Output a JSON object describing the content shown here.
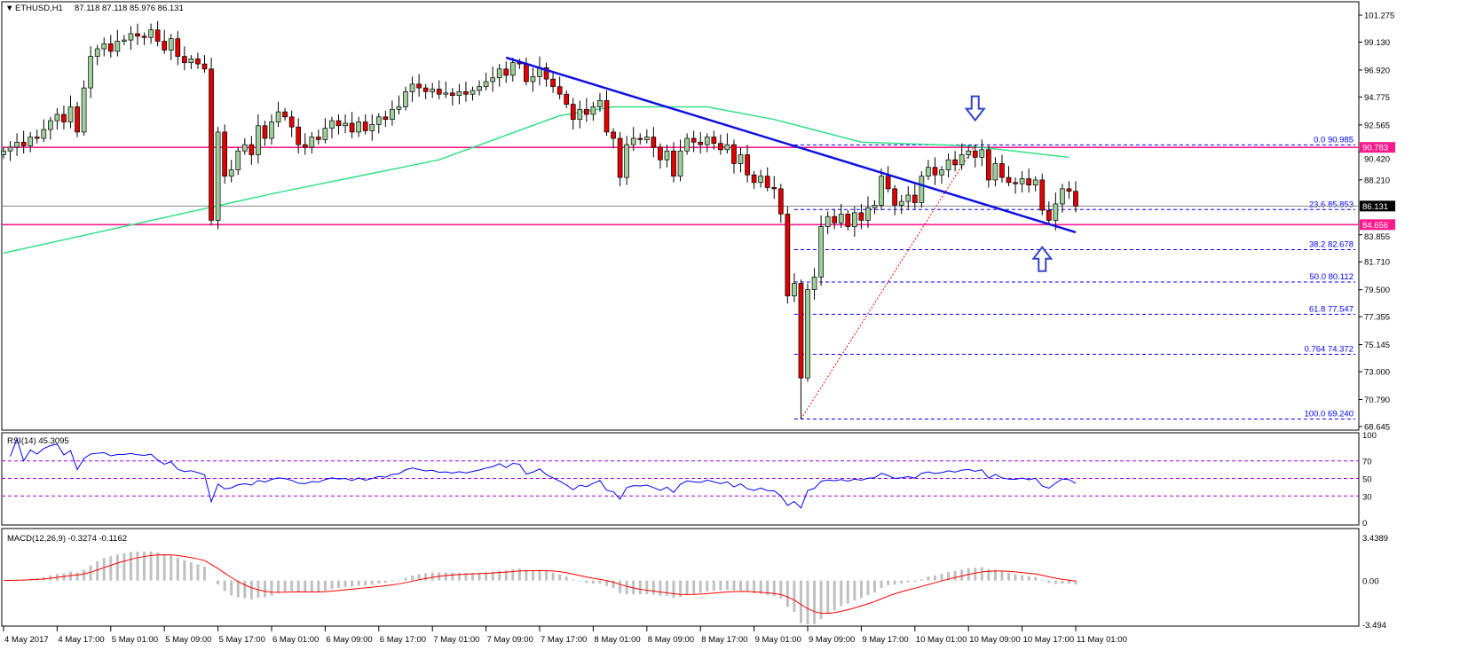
{
  "header": {
    "symbol": "ETHUSD,H1",
    "ohlc": "87.118 87.118 85.976 86.131"
  },
  "colors": {
    "bull": "#9fcf9a",
    "bear": "#e00000",
    "ma": "#33e08a",
    "trend": "#1010e0",
    "support": "#ff1a8c",
    "fib": "#0000ff",
    "rsi": "#0000ff",
    "levels": "#a000e0",
    "macd_signal": "#ff0000",
    "macd_hist": "#c0c0c0"
  },
  "chart_data": {
    "type": "candlestick",
    "title": "ETHUSD,H1",
    "timeframe_hours": 1,
    "ylim": [
      68.645,
      101.275
    ],
    "y_ticks": [
      "101.275",
      "99.130",
      "96.920",
      "94.775",
      "92.565",
      "90.420",
      "88.210",
      "83.855",
      "81.710",
      "79.500",
      "77.355",
      "75.145",
      "73.000",
      "70.790",
      "68.645"
    ],
    "x_ticks": [
      "4 May 2017",
      "4 May 17:00",
      "5 May 01:00",
      "5 May 09:00",
      "5 May 17:00",
      "6 May 01:00",
      "6 May 09:00",
      "6 May 17:00",
      "7 May 01:00",
      "7 May 09:00",
      "7 May 17:00",
      "8 May 01:00",
      "8 May 09:00",
      "8 May 17:00",
      "9 May 01:00",
      "9 May 09:00",
      "9 May 17:00",
      "10 May 01:00",
      "10 May 09:00",
      "10 May 17:00",
      "11 May 01:00"
    ],
    "x_tick_every_bars": 8,
    "closes": [
      90.5,
      90.8,
      91.2,
      90.9,
      91.6,
      91.5,
      92.2,
      92.9,
      93.4,
      92.8,
      94.0,
      92.0,
      95.5,
      98.0,
      98.6,
      99.0,
      98.4,
      99.2,
      99.3,
      99.8,
      99.6,
      99.5,
      100.1,
      99.2,
      98.5,
      99.4,
      98.0,
      97.5,
      97.8,
      97.4,
      97.0,
      85.0,
      92.0,
      88.5,
      89.0,
      90.5,
      91.0,
      90.2,
      92.5,
      91.5,
      92.8,
      93.6,
      93.2,
      92.4,
      91.0,
      90.8,
      91.6,
      91.4,
      92.3,
      92.9,
      92.5,
      92.7,
      92.0,
      92.8,
      92.1,
      92.6,
      93.2,
      93.0,
      93.8,
      94.0,
      95.2,
      95.8,
      95.5,
      95.2,
      95.4,
      95.0,
      95.1,
      94.9,
      95.2,
      95.0,
      95.3,
      95.6,
      96.0,
      96.3,
      97.0,
      96.5,
      97.5,
      97.4,
      96.0,
      96.4,
      97.1,
      96.2,
      95.6,
      95.0,
      94.2,
      93.0,
      93.8,
      93.4,
      94.0,
      94.5,
      92.0,
      91.5,
      88.4,
      91.0,
      91.5,
      91.4,
      91.6,
      90.8,
      89.8,
      90.5,
      88.5,
      90.5,
      91.5,
      91.2,
      91.0,
      91.6,
      91.1,
      90.6,
      91.0,
      89.5,
      90.2,
      88.6,
      88.0,
      88.5,
      87.6,
      87.5,
      85.5,
      79.0,
      80.0,
      72.5,
      79.5,
      80.5,
      84.5,
      85.3,
      84.8,
      85.5,
      84.5,
      85.6,
      85.0,
      86.0,
      86.2,
      88.5,
      87.5,
      86.2,
      86.5,
      87.0,
      86.4,
      88.5,
      89.2,
      88.6,
      89.0,
      89.8,
      89.4,
      90.2,
      90.5,
      90.0,
      90.6,
      88.2,
      89.5,
      88.4,
      88.0,
      87.9,
      88.3,
      87.8,
      88.2,
      85.8,
      85.0,
      86.3,
      87.5,
      87.3,
      86.131
    ],
    "extreme_lows": {
      "31": 84.6,
      "119": 69.24
    },
    "extreme_highs": {
      "31": 97.9,
      "76": 97.9,
      "145": 90.985
    },
    "moving_average": [
      [
        0,
        82.4
      ],
      [
        40,
        87.1
      ],
      [
        65,
        89.8
      ],
      [
        83,
        93.3
      ],
      [
        91,
        94.0
      ],
      [
        105,
        94.0
      ],
      [
        115,
        93.0
      ],
      [
        128,
        91.2
      ],
      [
        144,
        90.9
      ],
      [
        159,
        90.0
      ]
    ],
    "trendline": {
      "from": [
        75,
        97.9
      ],
      "to": [
        160,
        84.05
      ]
    },
    "horizontal_lines": [
      {
        "price": 90.783,
        "label": "90.783"
      },
      {
        "price": 84.656,
        "label": "84.656"
      }
    ],
    "current_price": {
      "price": 86.131,
      "label": "86.131"
    },
    "fibonacci": {
      "from_bar": 119,
      "to_bar": 145,
      "low": 69.24,
      "high": 90.985,
      "levels": [
        {
          "ratio": "0.0",
          "price": 90.985,
          "label": "90.985"
        },
        {
          "ratio": "23.6",
          "price": 85.853,
          "label": "85.853"
        },
        {
          "ratio": "38.2",
          "price": 82.678,
          "label": "82.678"
        },
        {
          "ratio": "50.0",
          "price": 80.112,
          "label": "80.112"
        },
        {
          "ratio": "61.8",
          "price": 77.547,
          "label": "77.547"
        },
        {
          "ratio": "0.764",
          "price": 74.372,
          "label": "74.372"
        },
        {
          "ratio": "100.0",
          "price": 69.24,
          "label": "69.240"
        }
      ]
    },
    "annotations": [
      {
        "type": "arrow-down",
        "bar": 145,
        "price": 93.0
      },
      {
        "type": "arrow-up",
        "bar": 155,
        "price": 82.8
      }
    ],
    "rsi": {
      "label": "RSI(14) 45.3095",
      "period": 14,
      "levels": [
        "70",
        "50",
        "30"
      ],
      "ticks": [
        "100",
        "70",
        "50",
        "30",
        "0"
      ]
    },
    "macd": {
      "label": "MACD(12,26,9) -0.3274 -0.1162",
      "fast": 12,
      "slow": 26,
      "signal": 9,
      "ticks": [
        "3.4389",
        "0.00",
        "-3.494"
      ],
      "range": [
        -3.494,
        3.4389
      ]
    }
  }
}
